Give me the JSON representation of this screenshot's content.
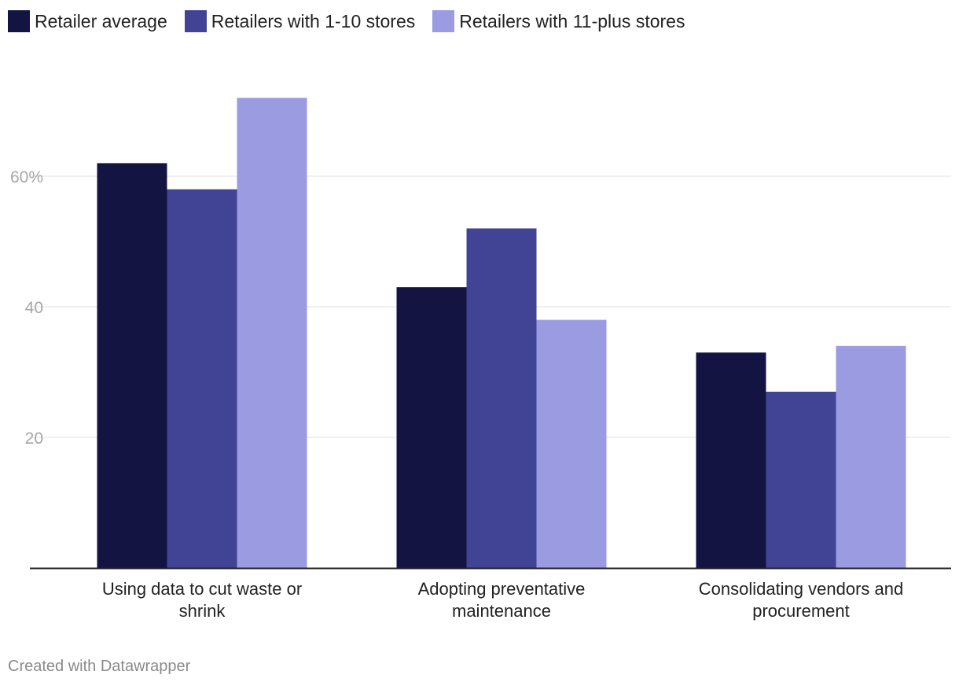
{
  "chart_data": {
    "type": "bar",
    "categories": [
      [
        "Using data to cut waste or",
        "shrink"
      ],
      [
        "Adopting preventative",
        "maintenance"
      ],
      [
        "Consolidating vendors and",
        "procurement"
      ]
    ],
    "series": [
      {
        "name": "Retailer average",
        "color": "#141443",
        "values": [
          62,
          43,
          33
        ]
      },
      {
        "name": "Retailers with 1-10 stores",
        "color": "#414394",
        "values": [
          58,
          52,
          27
        ]
      },
      {
        "name": "Retailers with 11-plus stores",
        "color": "#9b9be2",
        "values": [
          72,
          38,
          34
        ]
      }
    ],
    "y_ticks": [
      {
        "value": 20,
        "label": "20"
      },
      {
        "value": 40,
        "label": "40"
      },
      {
        "value": 60,
        "label": "60%"
      }
    ],
    "ylim": [
      0,
      75
    ],
    "grid": true,
    "legend_position": "top-left",
    "title": "",
    "xlabel": "",
    "ylabel": ""
  },
  "footer": {
    "credit": "Created with Datawrapper"
  }
}
